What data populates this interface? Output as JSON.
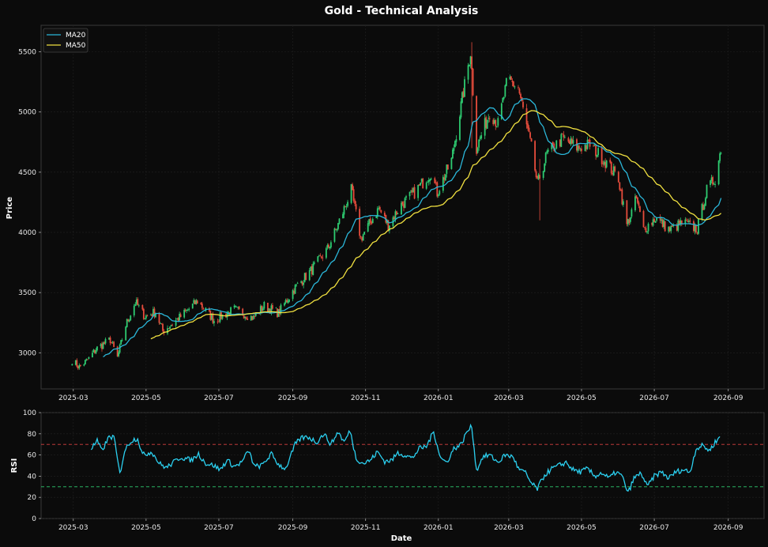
{
  "chart_data": [
    {
      "type": "candlestick",
      "title": "Gold - Technical Analysis",
      "xlabel": "",
      "ylabel": "Price",
      "ylim": [
        2700,
        5720
      ],
      "yticks": [
        3000,
        3500,
        4000,
        4500,
        5000,
        5500
      ],
      "xlim": [
        "2025-02-02",
        "2026-10-01"
      ],
      "xticks": [
        "2025-03",
        "2025-05",
        "2025-07",
        "2025-09",
        "2025-11",
        "2026-01",
        "2026-03",
        "2026-05",
        "2026-07",
        "2026-09"
      ],
      "grid": true,
      "legend_position": "top-left",
      "colors": {
        "up": "#2ecc71",
        "down": "#e74c3c",
        "ma20": "#2bb7d9",
        "ma50": "#f0e040",
        "background": "#0b0b0b",
        "grid": "#222222",
        "frame": "#3a3a3a"
      },
      "price_keypoints": [
        [
          "2025-02-28",
          2940
        ],
        [
          "2025-03-06",
          2880
        ],
        [
          "2025-03-14",
          2950
        ],
        [
          "2025-03-20",
          3030
        ],
        [
          "2025-04-01",
          3110
        ],
        [
          "2025-04-07",
          2960
        ],
        [
          "2025-04-14",
          3230
        ],
        [
          "2025-04-22",
          3420
        ],
        [
          "2025-04-30",
          3300
        ],
        [
          "2025-05-09",
          3340
        ],
        [
          "2025-05-15",
          3180
        ],
        [
          "2025-05-30",
          3300
        ],
        [
          "2025-06-13",
          3430
        ],
        [
          "2025-06-27",
          3270
        ],
        [
          "2025-07-14",
          3360
        ],
        [
          "2025-07-30",
          3290
        ],
        [
          "2025-08-08",
          3390
        ],
        [
          "2025-08-20",
          3330
        ],
        [
          "2025-09-02",
          3530
        ],
        [
          "2025-09-16",
          3680
        ],
        [
          "2025-09-30",
          3860
        ],
        [
          "2025-10-08",
          4040
        ],
        [
          "2025-10-20",
          4350
        ],
        [
          "2025-10-28",
          3950
        ],
        [
          "2025-11-12",
          4200
        ],
        [
          "2025-11-20",
          4060
        ],
        [
          "2025-12-01",
          4230
        ],
        [
          "2025-12-12",
          4330
        ],
        [
          "2025-12-26",
          4500
        ],
        [
          "2025-12-31",
          4330
        ],
        [
          "2026-01-12",
          4600
        ],
        [
          "2026-01-28",
          5500
        ],
        [
          "2026-02-02",
          4700
        ],
        [
          "2026-02-13",
          5000
        ],
        [
          "2026-02-20",
          4900
        ],
        [
          "2026-02-28",
          5270
        ],
        [
          "2026-03-09",
          5200
        ],
        [
          "2026-03-20",
          4700
        ],
        [
          "2026-03-25",
          4400
        ],
        [
          "2026-04-02",
          4650
        ],
        [
          "2026-04-15",
          4780
        ],
        [
          "2026-04-28",
          4700
        ],
        [
          "2026-05-08",
          4730
        ],
        [
          "2026-05-20",
          4600
        ],
        [
          "2026-06-01",
          4450
        ],
        [
          "2026-06-08",
          4060
        ],
        [
          "2026-06-16",
          4280
        ],
        [
          "2026-06-22",
          4020
        ],
        [
          "2026-07-02",
          4120
        ],
        [
          "2026-07-14",
          4020
        ],
        [
          "2026-07-25",
          4080
        ],
        [
          "2026-08-06",
          4030
        ],
        [
          "2026-08-14",
          4350
        ],
        [
          "2026-08-21",
          4450
        ],
        [
          "2026-08-26",
          4700
        ]
      ],
      "spikes": [
        {
          "date": "2026-01-29",
          "high": 5580,
          "low": 4700
        },
        {
          "date": "2026-03-27",
          "high": 4610,
          "low": 4100
        }
      ],
      "series": [
        {
          "name": "MA20",
          "color": "#2bb7d9",
          "start": "2025-03-26",
          "period": 20
        },
        {
          "name": "MA50",
          "color": "#f0e040",
          "start": "2025-05-04",
          "period": 50
        }
      ]
    },
    {
      "type": "line",
      "xlabel": "Date",
      "ylabel": "RSI",
      "ylim": [
        0,
        100
      ],
      "yticks": [
        0,
        20,
        40,
        60,
        80,
        100
      ],
      "xlim": [
        "2025-02-02",
        "2026-10-01"
      ],
      "xticks": [
        "2025-03",
        "2025-05",
        "2025-07",
        "2025-09",
        "2025-11",
        "2026-01",
        "2026-03",
        "2026-05",
        "2026-07",
        "2026-09"
      ],
      "reference_lines": [
        {
          "value": 70,
          "color": "#d94040"
        },
        {
          "value": 30,
          "color": "#2ecc71"
        }
      ],
      "line_color": "#2bd0f0",
      "points": [
        [
          "2025-03-16",
          66
        ],
        [
          "2025-03-21",
          73
        ],
        [
          "2025-03-25",
          64
        ],
        [
          "2025-03-31",
          77
        ],
        [
          "2025-04-04",
          77
        ],
        [
          "2025-04-09",
          42
        ],
        [
          "2025-04-13",
          64
        ],
        [
          "2025-04-18",
          73
        ],
        [
          "2025-04-24",
          76
        ],
        [
          "2025-04-28",
          60
        ],
        [
          "2025-05-06",
          63
        ],
        [
          "2025-05-12",
          52
        ],
        [
          "2025-05-18",
          48
        ],
        [
          "2025-05-24",
          53
        ],
        [
          "2025-05-30",
          58
        ],
        [
          "2025-06-08",
          55
        ],
        [
          "2025-06-14",
          61
        ],
        [
          "2025-06-20",
          52
        ],
        [
          "2025-06-27",
          50
        ],
        [
          "2025-07-02",
          46
        ],
        [
          "2025-07-08",
          55
        ],
        [
          "2025-07-14",
          49
        ],
        [
          "2025-07-20",
          53
        ],
        [
          "2025-07-26",
          64
        ],
        [
          "2025-07-31",
          49
        ],
        [
          "2025-08-06",
          50
        ],
        [
          "2025-08-14",
          61
        ],
        [
          "2025-08-20",
          51
        ],
        [
          "2025-08-26",
          47
        ],
        [
          "2025-09-03",
          70
        ],
        [
          "2025-09-08",
          76
        ],
        [
          "2025-09-14",
          77
        ],
        [
          "2025-09-21",
          72
        ],
        [
          "2025-09-27",
          80
        ],
        [
          "2025-10-03",
          70
        ],
        [
          "2025-10-09",
          82
        ],
        [
          "2025-10-14",
          72
        ],
        [
          "2025-10-19",
          83
        ],
        [
          "2025-10-24",
          57
        ],
        [
          "2025-10-30",
          52
        ],
        [
          "2025-11-05",
          55
        ],
        [
          "2025-11-11",
          63
        ],
        [
          "2025-11-17",
          54
        ],
        [
          "2025-11-23",
          55
        ],
        [
          "2025-11-28",
          62
        ],
        [
          "2025-12-04",
          60
        ],
        [
          "2025-12-10",
          57
        ],
        [
          "2025-12-16",
          66
        ],
        [
          "2025-12-22",
          68
        ],
        [
          "2025-12-28",
          82
        ],
        [
          "2026-01-03",
          57
        ],
        [
          "2026-01-08",
          53
        ],
        [
          "2026-01-14",
          66
        ],
        [
          "2026-01-20",
          70
        ],
        [
          "2026-01-25",
          82
        ],
        [
          "2026-01-29",
          87
        ],
        [
          "2026-02-02",
          45
        ],
        [
          "2026-02-07",
          58
        ],
        [
          "2026-02-13",
          60
        ],
        [
          "2026-02-20",
          53
        ],
        [
          "2026-02-26",
          60
        ],
        [
          "2026-03-05",
          58
        ],
        [
          "2026-03-09",
          47
        ],
        [
          "2026-03-15",
          43
        ],
        [
          "2026-03-20",
          33
        ],
        [
          "2026-03-25",
          28
        ],
        [
          "2026-03-31",
          41
        ],
        [
          "2026-04-06",
          47
        ],
        [
          "2026-04-12",
          50
        ],
        [
          "2026-04-18",
          53
        ],
        [
          "2026-04-24",
          46
        ],
        [
          "2026-04-30",
          44
        ],
        [
          "2026-05-06",
          47
        ],
        [
          "2026-05-12",
          40
        ],
        [
          "2026-05-18",
          43
        ],
        [
          "2026-05-24",
          38
        ],
        [
          "2026-05-30",
          44
        ],
        [
          "2026-06-04",
          40
        ],
        [
          "2026-06-09",
          24
        ],
        [
          "2026-06-14",
          38
        ],
        [
          "2026-06-20",
          43
        ],
        [
          "2026-06-25",
          30
        ],
        [
          "2026-07-01",
          40
        ],
        [
          "2026-07-07",
          44
        ],
        [
          "2026-07-13",
          38
        ],
        [
          "2026-07-19",
          44
        ],
        [
          "2026-07-25",
          46
        ],
        [
          "2026-07-31",
          44
        ],
        [
          "2026-08-05",
          66
        ],
        [
          "2026-08-11",
          69
        ],
        [
          "2026-08-16",
          64
        ],
        [
          "2026-08-21",
          72
        ],
        [
          "2026-08-25",
          77
        ]
      ]
    }
  ]
}
